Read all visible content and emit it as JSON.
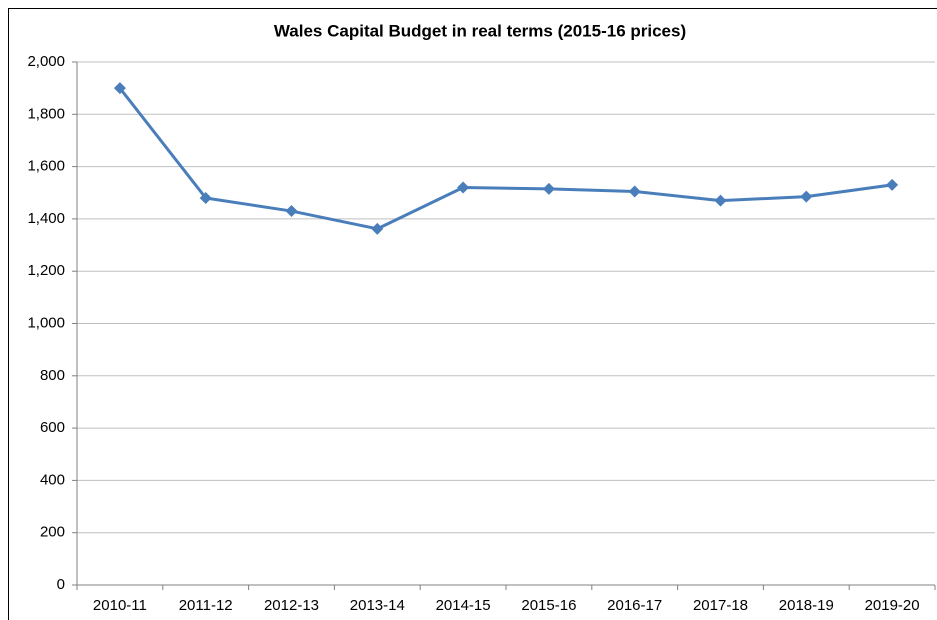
{
  "chart_data": {
    "type": "line",
    "title": "Wales Capital Budget in real terms (2015-16 prices)",
    "categories": [
      "2010-11",
      "2011-12",
      "2012-13",
      "2013-14",
      "2014-15",
      "2015-16",
      "2016-17",
      "2017-18",
      "2018-19",
      "2019-20"
    ],
    "series": [
      {
        "name": "Wales Capital Budget",
        "color": "#4a7ebb",
        "values": [
          1900,
          1480,
          1430,
          1362,
          1520,
          1515,
          1505,
          1470,
          1485,
          1530
        ]
      }
    ],
    "ylim": [
      0,
      2000
    ],
    "yticks": [
      0,
      200,
      400,
      600,
      800,
      {
        "value": 1000,
        "label": "1,000"
      },
      {
        "value": 1200,
        "label": "1,200"
      },
      {
        "value": 1400,
        "label": "1,400"
      },
      {
        "value": 1600,
        "label": "1,600"
      },
      {
        "value": 1800,
        "label": "1,800"
      },
      {
        "value": 2000,
        "label": "2,000"
      }
    ],
    "grid": true
  }
}
